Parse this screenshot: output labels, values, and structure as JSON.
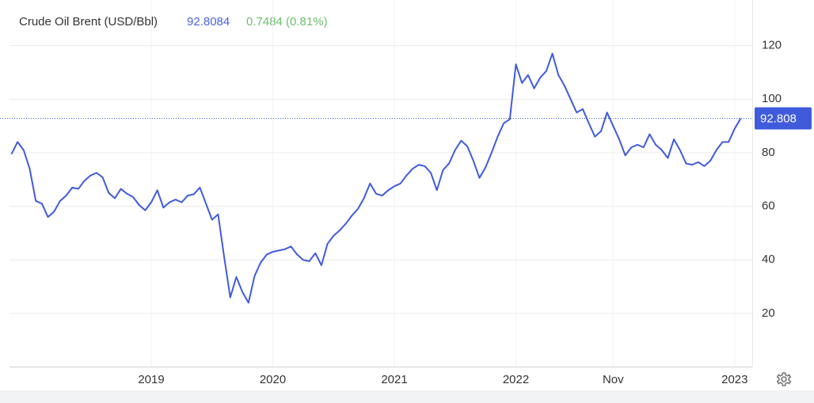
{
  "chart_data": {
    "type": "line",
    "title": "Crude Oil Brent (USD/Bbl)",
    "price": "92.8084",
    "change": "0.7484 (0.81%)",
    "last_value": 92.808,
    "categories": [
      null,
      null,
      null,
      null,
      null,
      null,
      null,
      null,
      null,
      null,
      null,
      null,
      null,
      null,
      null,
      null,
      null,
      null,
      null,
      null,
      null,
      null,
      null,
      "2019",
      null,
      null,
      null,
      null,
      null,
      null,
      null,
      null,
      null,
      null,
      null,
      null,
      null,
      null,
      null,
      null,
      null,
      null,
      null,
      "2020",
      null,
      null,
      null,
      null,
      null,
      null,
      null,
      null,
      null,
      null,
      null,
      null,
      null,
      null,
      null,
      null,
      null,
      null,
      null,
      "2021",
      null,
      null,
      null,
      null,
      null,
      null,
      null,
      null,
      null,
      null,
      null,
      null,
      null,
      null,
      null,
      null,
      null,
      null,
      null,
      "2022",
      null,
      null,
      null,
      null,
      null,
      null,
      null,
      null,
      null,
      null,
      null,
      null,
      null,
      null,
      null,
      "Nov",
      null,
      null,
      null,
      null,
      null,
      null,
      null,
      null,
      null,
      null,
      null,
      null,
      null,
      null,
      null,
      null,
      null,
      null,
      null,
      "2023",
      null
    ],
    "series": [
      {
        "name": "Crude Oil Brent",
        "color": "#3f5bdc",
        "values": [
          79.5,
          84,
          81,
          74,
          62,
          61,
          56,
          58,
          62,
          64,
          67,
          66.5,
          69.5,
          71.5,
          72.5,
          70.8,
          65,
          63,
          66.5,
          64.7,
          63.5,
          60.5,
          58.5,
          61.5,
          66,
          59.5,
          61.5,
          62.5,
          61.5,
          64,
          64.5,
          67,
          61,
          55,
          57,
          41,
          26,
          33.6,
          28,
          24,
          34,
          39,
          42,
          43,
          43.5,
          44,
          45,
          42,
          40,
          39.5,
          42.5,
          38,
          46,
          49,
          51,
          53.5,
          56.5,
          59,
          63,
          68.5,
          64.7,
          64,
          66,
          67.5,
          68.5,
          71.5,
          74,
          75.5,
          75,
          72.5,
          66,
          73.5,
          76,
          81,
          84.5,
          82.4,
          77,
          70.6,
          74.5,
          80,
          86,
          91,
          92.5,
          113,
          106,
          109,
          104,
          108,
          110.5,
          117,
          109,
          105,
          100,
          95,
          96.3,
          91,
          86,
          88,
          95,
          90,
          85,
          79,
          82,
          83,
          82,
          86.9,
          83,
          81,
          78,
          85,
          81,
          76,
          75.5,
          76.5,
          75,
          77,
          81,
          84,
          84,
          89,
          92.8
        ]
      }
    ],
    "ylim": [
      0,
      137
    ],
    "yticks": [
      20,
      40,
      60,
      80,
      100,
      120
    ],
    "grid": true
  }
}
